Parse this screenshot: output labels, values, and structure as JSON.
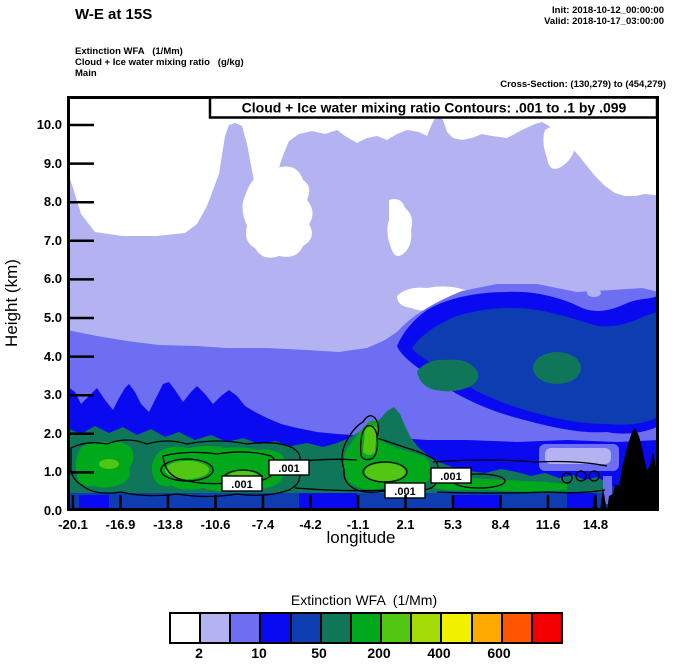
{
  "header": {
    "title": "W-E at 15S",
    "init": "Init: 2018-10-12_00:00:00",
    "valid": "Valid: 2018-10-17_03:00:00"
  },
  "fields": {
    "line1": "Extinction WFA   (1/Mm)",
    "line2": "Cloud + Ice water mixing ratio   (g/kg)",
    "line3": "Main"
  },
  "cross_section": "Cross-Section: (130,279) to (454,279)",
  "chart_data": {
    "type": "filled_contour_cross_section",
    "title": "Cloud + Ice water mixing ratio Contours: .001 to .1 by .099",
    "shaded_field": "Extinction WFA (1/Mm)",
    "contour_field": "Cloud + Ice water mixing ratio (g/kg)",
    "xlabel": "longitude",
    "ylabel": "Height (km)",
    "x_tick_labels": [
      "-20.1",
      "-16.9",
      "-13.8",
      "-10.6",
      "-7.4",
      "-4.2",
      "-1.1",
      "2.1",
      "5.3",
      "8.4",
      "11.6",
      "14.8"
    ],
    "y_tick_labels": [
      "0.0",
      "1.0",
      "2.0",
      "3.0",
      "4.0",
      "5.0",
      "6.0",
      "7.0",
      "8.0",
      "9.0",
      "10.0"
    ],
    "y_range_km": [
      0.0,
      10.75
    ],
    "contour_levels": ".001 to .1 by .099",
    "contour_line_label": ".001",
    "contour_label_count": 4,
    "colorbar": {
      "title": "Extinction WFA  (1/Mm)",
      "tick_labels": [
        "2",
        "10",
        "50",
        "200",
        "400",
        "600"
      ],
      "colors": [
        "#ffffff",
        "#b3b3f1",
        "#6e6ef3",
        "#0a0af0",
        "#0d3db0",
        "#107659",
        "#00a81c",
        "#52c713",
        "#a6dc06",
        "#f2f200",
        "#ffaa00",
        "#ff5500",
        "#f20000"
      ]
    },
    "colors": {
      "white": "#ffffff",
      "lavender": "#b3b3f1",
      "purple": "#6e6ef3",
      "blue": "#0a0af0",
      "navy": "#0d3db0",
      "teal": "#107659",
      "green": "#00a81c",
      "bright_green": "#52c713",
      "terrain_black": "#000000"
    }
  }
}
